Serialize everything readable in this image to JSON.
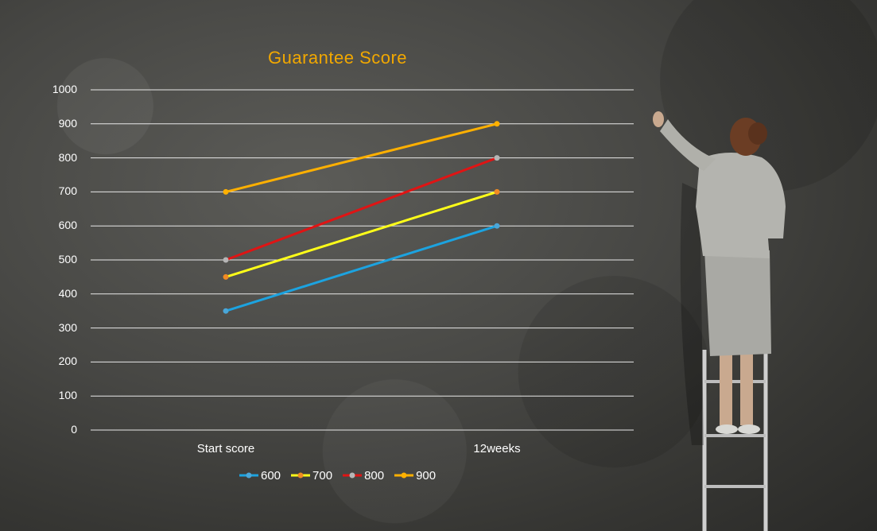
{
  "chart_data": {
    "type": "line",
    "title": "Guarantee Score",
    "categories": [
      "Start score",
      "12weeks"
    ],
    "ylim": [
      0,
      1000
    ],
    "yticks": [
      0,
      100,
      200,
      300,
      400,
      500,
      600,
      700,
      800,
      900,
      1000
    ],
    "grid": true,
    "legend": "bottom",
    "series": [
      {
        "name": "600",
        "values": [
          350,
          600
        ],
        "color": "#1ca3e0",
        "marker": "#4aa6d8"
      },
      {
        "name": "700",
        "values": [
          450,
          700
        ],
        "color": "#ffff19",
        "marker": "#f08a24"
      },
      {
        "name": "800",
        "values": [
          500,
          800
        ],
        "color": "#e01414",
        "marker": "#b5b5b5"
      },
      {
        "name": "900",
        "values": [
          700,
          900
        ],
        "color": "#ffb000",
        "marker": "#ffb000"
      }
    ]
  }
}
